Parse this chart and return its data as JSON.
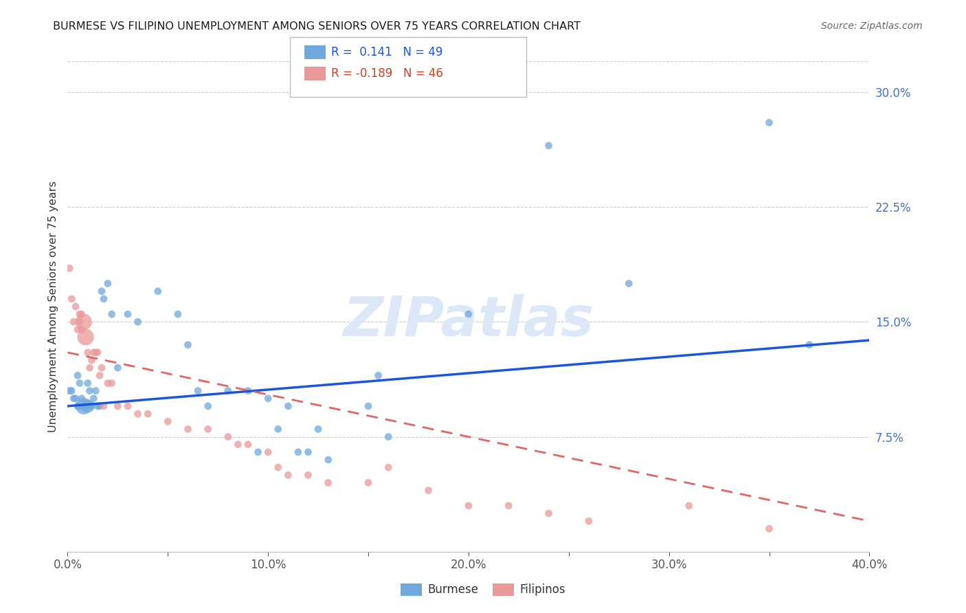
{
  "title": "BURMESE VS FILIPINO UNEMPLOYMENT AMONG SENIORS OVER 75 YEARS CORRELATION CHART",
  "source": "Source: ZipAtlas.com",
  "ylabel": "Unemployment Among Seniors over 75 years",
  "xlim": [
    0.0,
    0.4
  ],
  "ylim": [
    0.0,
    0.32
  ],
  "xticks": [
    0.0,
    0.05,
    0.1,
    0.15,
    0.2,
    0.25,
    0.3,
    0.35,
    0.4
  ],
  "xtick_labels": [
    "0.0%",
    "",
    "10.0%",
    "",
    "20.0%",
    "",
    "30.0%",
    "",
    "40.0%"
  ],
  "yticks_right": [
    0.075,
    0.15,
    0.225,
    0.3
  ],
  "ytick_labels_right": [
    "7.5%",
    "15.0%",
    "22.5%",
    "30.0%"
  ],
  "burmese_R": 0.141,
  "burmese_N": 49,
  "filipino_R": -0.189,
  "filipino_N": 46,
  "burmese_color": "#6fa8dc",
  "filipino_color": "#ea9999",
  "burmese_line_color": "#1a56db",
  "filipino_line_color": "#e06666",
  "watermark_color": "#dce8f8",
  "burmese_x": [
    0.001,
    0.002,
    0.003,
    0.004,
    0.005,
    0.005,
    0.006,
    0.006,
    0.007,
    0.008,
    0.009,
    0.01,
    0.01,
    0.011,
    0.012,
    0.013,
    0.014,
    0.015,
    0.016,
    0.017,
    0.018,
    0.02,
    0.022,
    0.025,
    0.03,
    0.035,
    0.045,
    0.055,
    0.06,
    0.065,
    0.07,
    0.08,
    0.09,
    0.095,
    0.1,
    0.105,
    0.11,
    0.115,
    0.12,
    0.125,
    0.13,
    0.15,
    0.155,
    0.16,
    0.2,
    0.24,
    0.28,
    0.35,
    0.37
  ],
  "burmese_y": [
    0.105,
    0.105,
    0.1,
    0.1,
    0.095,
    0.115,
    0.11,
    0.095,
    0.1,
    0.095,
    0.095,
    0.095,
    0.11,
    0.105,
    0.095,
    0.1,
    0.105,
    0.095,
    0.095,
    0.17,
    0.165,
    0.175,
    0.155,
    0.12,
    0.155,
    0.15,
    0.17,
    0.155,
    0.135,
    0.105,
    0.095,
    0.105,
    0.105,
    0.065,
    0.1,
    0.08,
    0.095,
    0.065,
    0.065,
    0.08,
    0.06,
    0.095,
    0.115,
    0.075,
    0.155,
    0.265,
    0.175,
    0.28,
    0.135
  ],
  "burmese_size": [
    60,
    60,
    60,
    60,
    60,
    60,
    60,
    60,
    60,
    300,
    60,
    200,
    60,
    60,
    60,
    60,
    60,
    60,
    60,
    60,
    60,
    60,
    60,
    60,
    60,
    60,
    60,
    60,
    60,
    60,
    60,
    60,
    60,
    60,
    60,
    60,
    60,
    60,
    60,
    60,
    60,
    60,
    60,
    60,
    60,
    60,
    60,
    60,
    60
  ],
  "filipino_x": [
    0.001,
    0.002,
    0.003,
    0.004,
    0.005,
    0.006,
    0.006,
    0.007,
    0.007,
    0.008,
    0.009,
    0.01,
    0.011,
    0.012,
    0.013,
    0.014,
    0.015,
    0.016,
    0.017,
    0.018,
    0.02,
    0.022,
    0.025,
    0.03,
    0.035,
    0.04,
    0.05,
    0.06,
    0.07,
    0.08,
    0.085,
    0.09,
    0.1,
    0.105,
    0.11,
    0.12,
    0.13,
    0.15,
    0.16,
    0.18,
    0.2,
    0.22,
    0.24,
    0.26,
    0.31,
    0.35
  ],
  "filipino_y": [
    0.185,
    0.165,
    0.15,
    0.16,
    0.145,
    0.155,
    0.15,
    0.155,
    0.145,
    0.15,
    0.14,
    0.13,
    0.12,
    0.125,
    0.13,
    0.13,
    0.13,
    0.115,
    0.12,
    0.095,
    0.11,
    0.11,
    0.095,
    0.095,
    0.09,
    0.09,
    0.085,
    0.08,
    0.08,
    0.075,
    0.07,
    0.07,
    0.065,
    0.055,
    0.05,
    0.05,
    0.045,
    0.045,
    0.055,
    0.04,
    0.03,
    0.03,
    0.025,
    0.02,
    0.03,
    0.015
  ],
  "filipino_size": [
    60,
    60,
    60,
    60,
    60,
    60,
    60,
    60,
    60,
    300,
    300,
    60,
    60,
    60,
    60,
    60,
    60,
    60,
    60,
    60,
    60,
    60,
    60,
    60,
    60,
    60,
    60,
    60,
    60,
    60,
    60,
    60,
    60,
    60,
    60,
    60,
    60,
    60,
    60,
    60,
    60,
    60,
    60,
    60,
    60,
    60
  ],
  "burmese_line_x": [
    0.0,
    0.4
  ],
  "burmese_line_y": [
    0.095,
    0.138
  ],
  "filipino_line_x": [
    0.0,
    0.4
  ],
  "filipino_line_y": [
    0.13,
    0.02
  ]
}
